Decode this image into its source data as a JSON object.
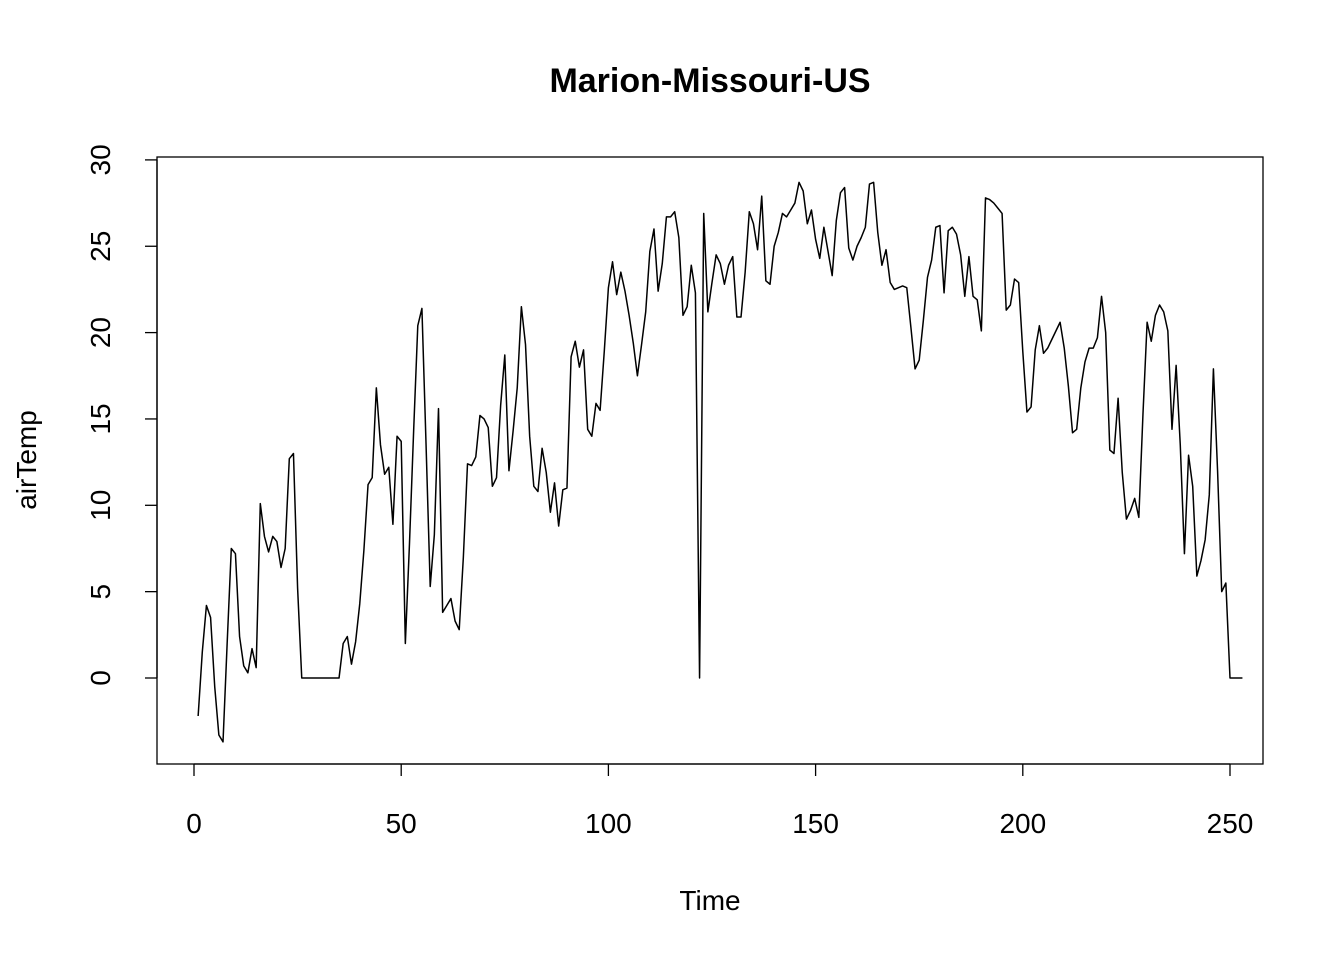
{
  "chart_data": {
    "type": "line",
    "title": "Marion-Missouri-US",
    "xlabel": "Time",
    "ylabel": "airTemp",
    "xlim": [
      0,
      250
    ],
    "ylim": [
      -5,
      30
    ],
    "x_ticks": [
      0,
      50,
      100,
      150,
      200,
      250
    ],
    "y_ticks": [
      0,
      5,
      10,
      15,
      20,
      25,
      30
    ],
    "grid": false,
    "legend": "none",
    "series": [
      {
        "x_start": 1,
        "values": [
          -2.2,
          1.5,
          4.2,
          3.5,
          -0.5,
          -3.3,
          -3.7,
          2.0,
          7.5,
          7.2,
          2.4,
          0.7,
          0.3,
          1.7,
          0.6,
          10.1,
          8.2,
          7.3,
          8.2,
          7.9,
          6.4,
          7.5,
          12.7,
          13.0,
          5.2,
          0.0,
          0.0,
          0.0,
          0.0,
          0.0,
          0.0,
          0.0,
          0.0,
          0.0,
          0.0,
          2.0,
          2.4,
          0.8,
          2.1,
          4.3,
          7.4,
          11.2,
          11.6,
          16.8,
          13.5,
          11.8,
          12.2,
          8.9,
          14.0,
          13.7,
          2.0,
          7.8,
          14.3,
          20.4,
          21.4,
          13.5,
          5.3,
          8.3,
          15.6,
          3.8,
          4.2,
          4.6,
          3.3,
          2.8,
          7.0,
          12.4,
          12.3,
          12.8,
          15.2,
          15.0,
          14.5,
          11.1,
          11.6,
          15.8,
          18.7,
          12.0,
          14.3,
          16.8,
          21.5,
          19.3,
          14.0,
          11.1,
          10.8,
          13.3,
          11.9,
          9.6,
          11.3,
          8.8,
          10.9,
          11.0,
          18.6,
          19.5,
          18.0,
          19.0,
          14.4,
          14.0,
          15.9,
          15.5,
          18.9,
          22.6,
          24.1,
          22.2,
          23.5,
          22.4,
          21.0,
          19.4,
          17.5,
          19.3,
          21.2,
          24.7,
          26.0,
          22.4,
          24.0,
          26.7,
          26.7,
          27.0,
          25.5,
          21.0,
          21.5,
          23.9,
          22.3,
          0.0,
          26.9,
          21.2,
          22.9,
          24.5,
          24.0,
          22.8,
          23.9,
          24.4,
          20.9,
          20.9,
          23.5,
          27.0,
          26.3,
          24.8,
          27.9,
          23.0,
          22.8,
          25.0,
          25.8,
          26.9,
          26.7,
          27.1,
          27.5,
          28.7,
          28.2,
          26.3,
          27.1,
          25.4,
          24.3,
          26.1,
          24.7,
          23.3,
          26.5,
          28.1,
          28.4,
          24.9,
          24.2,
          25.0,
          25.5,
          26.1,
          28.6,
          28.7,
          25.8,
          23.9,
          24.8,
          22.9,
          22.5,
          22.6,
          22.7,
          22.6,
          20.3,
          17.9,
          18.4,
          20.7,
          23.2,
          24.2,
          26.1,
          26.2,
          22.3,
          25.9,
          26.1,
          25.7,
          24.5,
          22.1,
          24.4,
          22.1,
          21.9,
          20.1,
          27.8,
          27.7,
          27.5,
          27.2,
          26.9,
          21.3,
          21.6,
          23.1,
          22.9,
          18.9,
          15.4,
          15.7,
          19.0,
          20.4,
          18.8,
          19.1,
          19.6,
          20.1,
          20.6,
          19.1,
          16.9,
          14.2,
          14.4,
          16.8,
          18.3,
          19.1,
          19.1,
          19.7,
          22.1,
          20.0,
          13.2,
          13.0,
          16.2,
          11.9,
          9.2,
          9.7,
          10.4,
          9.3,
          15.3,
          20.6,
          19.5,
          21.0,
          21.6,
          21.2,
          20.1,
          14.4,
          18.1,
          13.5,
          7.2,
          12.9,
          11.1,
          5.9,
          6.8,
          8.0,
          10.6,
          17.9,
          12.0,
          5.0,
          5.5,
          0.0,
          0.0,
          0.0,
          0.0
        ]
      }
    ]
  }
}
